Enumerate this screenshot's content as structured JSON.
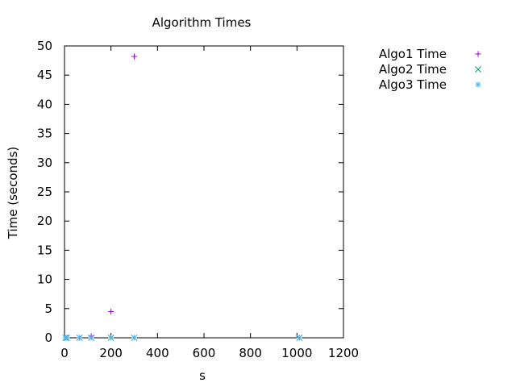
{
  "chart_data": {
    "type": "scatter",
    "title": "Algorithm Times",
    "xlabel": "s",
    "ylabel": "Time (seconds)",
    "xlim": [
      0,
      1200
    ],
    "ylim": [
      0,
      50
    ],
    "xticks": [
      0,
      200,
      400,
      600,
      800,
      1000,
      1200
    ],
    "yticks": [
      0,
      5,
      10,
      15,
      20,
      25,
      30,
      35,
      40,
      45,
      50
    ],
    "grid": false,
    "legend_position": "top-right-outside",
    "series": [
      {
        "name": "Algo1 Time",
        "marker": "plus",
        "color": "#9400d3",
        "points": [
          [
            5,
            0
          ],
          [
            10,
            0
          ],
          [
            65,
            0.01
          ],
          [
            115,
            0.3
          ],
          [
            200,
            4.5
          ],
          [
            300,
            48.2
          ],
          [
            1010,
            0
          ]
        ]
      },
      {
        "name": "Algo2 Time",
        "marker": "cross",
        "color": "#009e73",
        "points": [
          [
            5,
            0
          ],
          [
            10,
            0
          ],
          [
            65,
            0
          ],
          [
            115,
            0
          ],
          [
            200,
            0
          ],
          [
            300,
            0
          ],
          [
            1010,
            0
          ]
        ]
      },
      {
        "name": "Algo3 Time",
        "marker": "star",
        "color": "#56b4e9",
        "points": [
          [
            5,
            0
          ],
          [
            10,
            0
          ],
          [
            65,
            0
          ],
          [
            115,
            0
          ],
          [
            200,
            0
          ],
          [
            300,
            0
          ],
          [
            1010,
            0
          ]
        ]
      }
    ]
  }
}
